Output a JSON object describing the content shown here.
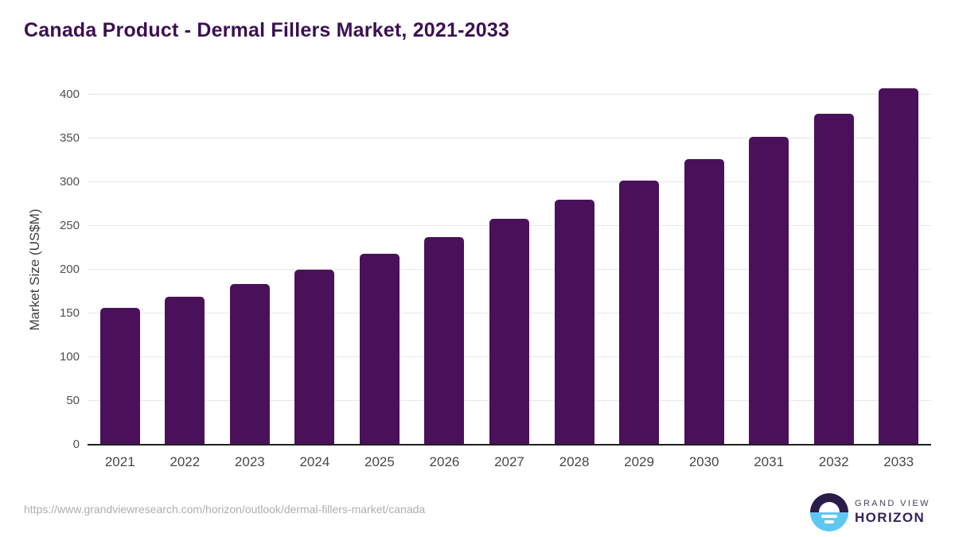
{
  "header": {
    "title": "Canada Product - Dermal Fillers Market, 2021-2033"
  },
  "chart_data": {
    "type": "bar",
    "title": "Canada Product - Dermal Fillers Market, 2021-2033",
    "categories": [
      "2021",
      "2022",
      "2023",
      "2024",
      "2025",
      "2026",
      "2027",
      "2028",
      "2029",
      "2030",
      "2031",
      "2032",
      "2033"
    ],
    "values": [
      156,
      169,
      184,
      200,
      218,
      237,
      258,
      280,
      302,
      326,
      352,
      378,
      407
    ],
    "xlabel": "",
    "ylabel": "Market Size (US$M)",
    "ylim": [
      0,
      400
    ],
    "ytick_step": 50,
    "grid": true,
    "legend": false
  },
  "footer": {
    "source_url": "https://www.grandviewresearch.com/horizon/outlook/dermal-fillers-market/canada",
    "logo": {
      "line1": "GRAND VIEW",
      "line2": "HORIZON"
    }
  },
  "colors": {
    "bar": "#4a115a",
    "title_text": "#3b1053",
    "axis_text": "#3f3f3f",
    "tick_text": "#4f4f4f",
    "gridline": "#e7e7e7",
    "axis_line": "#1f1f1f",
    "url_text": "#aeaeae",
    "logo_dark": "#2b1c49",
    "logo_blue": "#5ec8f2",
    "logo_text_primary": "#352457",
    "logo_text_secondary": "#44445a"
  }
}
